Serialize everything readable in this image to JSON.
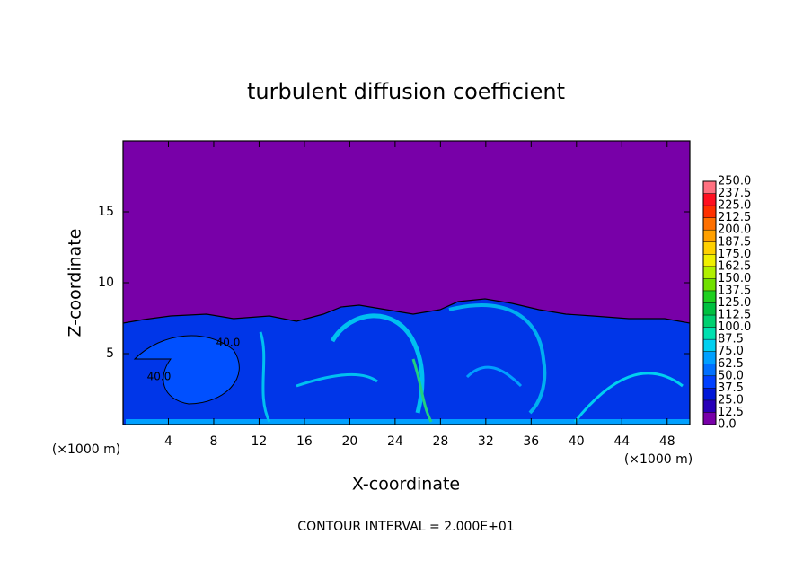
{
  "chart_data": {
    "type": "contour",
    "title": "turbulent diffusion coefficient",
    "xlabel": "X-coordinate",
    "ylabel": "Z-coordinate",
    "x_unit": "(×1000 m)",
    "y_unit": "(×1000 m)",
    "footnote": "CONTOUR INTERVAL = 2.000E+01",
    "xlim": [
      0,
      50
    ],
    "xticks": [
      4,
      8,
      12,
      16,
      20,
      24,
      28,
      32,
      36,
      40,
      44,
      48
    ],
    "ylim": [
      0,
      20
    ],
    "yticks": [
      5,
      10,
      15
    ],
    "annotations": [
      "40.0",
      "40.0"
    ],
    "colorbar": {
      "levels": [
        {
          "value": 0,
          "label": "0.0"
        },
        {
          "value": 12.5,
          "label": "12.5"
        },
        {
          "value": 25,
          "label": "25.0"
        },
        {
          "value": 37.5,
          "label": "37.5"
        },
        {
          "value": 50,
          "label": "50.0"
        },
        {
          "value": 62.5,
          "label": "62.5"
        },
        {
          "value": 75,
          "label": "75.0"
        },
        {
          "value": 87.5,
          "label": "87.5"
        },
        {
          "value": 100,
          "label": "100.0"
        },
        {
          "value": 112.5,
          "label": "112.5"
        },
        {
          "value": 125,
          "label": "125.0"
        },
        {
          "value": 137.5,
          "label": "137.5"
        },
        {
          "value": 150,
          "label": "150.0"
        },
        {
          "value": 162.5,
          "label": "162.5"
        },
        {
          "value": 175,
          "label": "175.0"
        },
        {
          "value": 187.5,
          "label": "187.5"
        },
        {
          "value": 200,
          "label": "200.0"
        },
        {
          "value": 212.5,
          "label": "212.5"
        },
        {
          "value": 225,
          "label": "225.0"
        },
        {
          "value": 237.5,
          "label": "237.5"
        },
        {
          "value": 250,
          "label": "250.0"
        }
      ],
      "colors": [
        "#7800a8",
        "#2800b8",
        "#0018d8",
        "#0040ff",
        "#0070ff",
        "#00a0ff",
        "#00d0f0",
        "#00e0b0",
        "#00d070",
        "#00c040",
        "#20d020",
        "#70e000",
        "#b0f000",
        "#f0f000",
        "#ffd000",
        "#ffa000",
        "#ff7000",
        "#ff3000",
        "#ff1020",
        "#ff7080"
      ]
    }
  }
}
